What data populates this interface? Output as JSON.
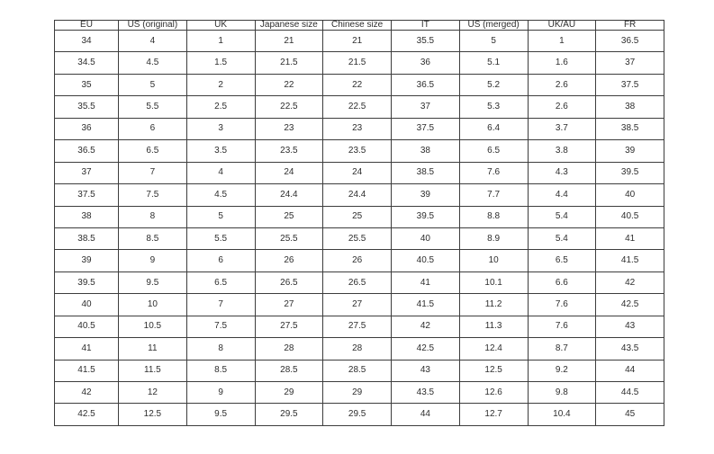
{
  "chart_data": {
    "type": "table",
    "columns": [
      "EU",
      "US (original)",
      "UK",
      "Japanese size",
      "Chinese size",
      "IT",
      "US (merged)",
      "UK/AU",
      "FR"
    ],
    "rows": [
      [
        "34",
        "4",
        "1",
        "21",
        "21",
        "35.5",
        "5",
        "1",
        "36.5"
      ],
      [
        "34.5",
        "4.5",
        "1.5",
        "21.5",
        "21.5",
        "36",
        "5.1",
        "1.6",
        "37"
      ],
      [
        "35",
        "5",
        "2",
        "22",
        "22",
        "36.5",
        "5.2",
        "2.6",
        "37.5"
      ],
      [
        "35.5",
        "5.5",
        "2.5",
        "22.5",
        "22.5",
        "37",
        "5.3",
        "2.6",
        "38"
      ],
      [
        "36",
        "6",
        "3",
        "23",
        "23",
        "37.5",
        "6.4",
        "3.7",
        "38.5"
      ],
      [
        "36.5",
        "6.5",
        "3.5",
        "23.5",
        "23.5",
        "38",
        "6.5",
        "3.8",
        "39"
      ],
      [
        "37",
        "7",
        "4",
        "24",
        "24",
        "38.5",
        "7.6",
        "4.3",
        "39.5"
      ],
      [
        "37.5",
        "7.5",
        "4.5",
        "24.4",
        "24.4",
        "39",
        "7.7",
        "4.4",
        "40"
      ],
      [
        "38",
        "8",
        "5",
        "25",
        "25",
        "39.5",
        "8.8",
        "5.4",
        "40.5"
      ],
      [
        "38.5",
        "8.5",
        "5.5",
        "25.5",
        "25.5",
        "40",
        "8.9",
        "5.4",
        "41"
      ],
      [
        "39",
        "9",
        "6",
        "26",
        "26",
        "40.5",
        "10",
        "6.5",
        "41.5"
      ],
      [
        "39.5",
        "9.5",
        "6.5",
        "26.5",
        "26.5",
        "41",
        "10.1",
        "6.6",
        "42"
      ],
      [
        "40",
        "10",
        "7",
        "27",
        "27",
        "41.5",
        "11.2",
        "7.6",
        "42.5"
      ],
      [
        "40.5",
        "10.5",
        "7.5",
        "27.5",
        "27.5",
        "42",
        "11.3",
        "7.6",
        "43"
      ],
      [
        "41",
        "11",
        "8",
        "28",
        "28",
        "42.5",
        "12.4",
        "8.7",
        "43.5"
      ],
      [
        "41.5",
        "11.5",
        "8.5",
        "28.5",
        "28.5",
        "43",
        "12.5",
        "9.2",
        "44"
      ],
      [
        "42",
        "12",
        "9",
        "29",
        "29",
        "43.5",
        "12.6",
        "9.8",
        "44.5"
      ],
      [
        "42.5",
        "12.5",
        "9.5",
        "29.5",
        "29.5",
        "44",
        "12.7",
        "10.4",
        "45"
      ]
    ],
    "layout": {
      "grid": "on",
      "border_color": "#3d3d3d",
      "text_color": "#2e2e2e",
      "background_color": "#ffffff"
    }
  }
}
